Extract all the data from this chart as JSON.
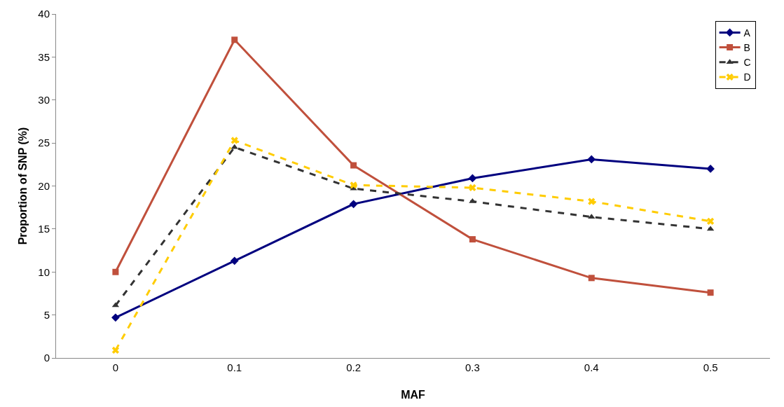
{
  "chart_data": {
    "type": "line",
    "xlabel": "MAF",
    "ylabel": "Proportion of SNP (%)",
    "categories": [
      "0",
      "0.1",
      "0.2",
      "0.3",
      "0.4",
      "0.5"
    ],
    "series": [
      {
        "name": "A",
        "color": "#00007f",
        "marker": "diamond",
        "line_style": "solid",
        "values": [
          4.7,
          11.3,
          17.9,
          20.9,
          23.1,
          22.0
        ]
      },
      {
        "name": "B",
        "color": "#c0503c",
        "marker": "square",
        "line_style": "solid",
        "values": [
          10.0,
          37.0,
          22.4,
          13.8,
          9.3,
          7.6
        ]
      },
      {
        "name": "C",
        "color": "#333333",
        "marker": "triangle",
        "line_style": "dashed",
        "values": [
          6.1,
          24.5,
          19.7,
          18.2,
          16.4,
          15.0
        ]
      },
      {
        "name": "D",
        "color": "#ffcc00",
        "marker": "cross",
        "line_style": "dashed",
        "values": [
          0.9,
          25.3,
          20.1,
          19.8,
          18.2,
          15.9
        ]
      }
    ],
    "ylim": [
      0,
      40
    ],
    "yticks": [
      0,
      5,
      10,
      15,
      20,
      25,
      30,
      35,
      40
    ],
    "grid": false,
    "legend": "top right"
  }
}
